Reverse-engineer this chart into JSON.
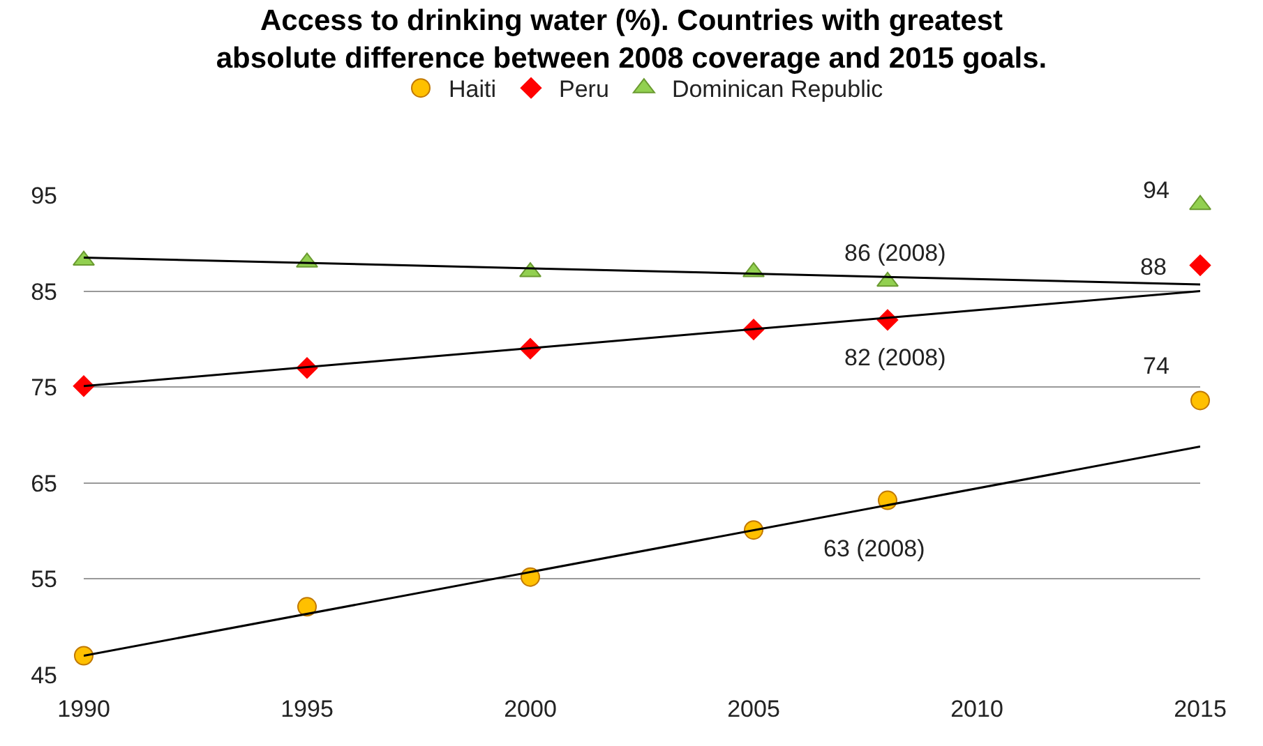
{
  "chart_data": {
    "type": "scatter",
    "title": "Access to drinking water (%). Countries with greatest\nabsolute difference between 2008 coverage and 2015 goals.",
    "xlim": [
      1990,
      2015
    ],
    "xticks": [
      1990,
      1995,
      2000,
      2005,
      2010,
      2015
    ],
    "ylim": [
      45,
      95
    ],
    "yticks": [
      45,
      55,
      65,
      75,
      85,
      95
    ],
    "grid": "y",
    "legend": "top",
    "series": [
      {
        "name": "Haiti",
        "color": "#ffc000",
        "marker": "circle",
        "x": [
          1990,
          1995,
          2000,
          2005,
          2008,
          2015
        ],
        "values": [
          47,
          52.1,
          55.2,
          60.1,
          63.2,
          73.6
        ]
      },
      {
        "name": "Peru",
        "color": "#ff0000",
        "marker": "diamond",
        "x": [
          1990,
          1995,
          2000,
          2005,
          2008,
          2015
        ],
        "values": [
          75.1,
          77,
          79,
          81,
          82,
          87.7
        ]
      },
      {
        "name": "Dominican Republic",
        "color": "#92d050",
        "marker": "triangle",
        "x": [
          1990,
          1995,
          2000,
          2005,
          2008,
          2015
        ],
        "values": [
          88.2,
          88,
          87,
          87,
          86,
          94
        ]
      },
      {
        "type": "line",
        "color": "#000000",
        "marker": "none",
        "x": [
          1990,
          2015
        ],
        "values": [
          47,
          68.8
        ]
      },
      {
        "type": "line",
        "color": "#000000",
        "marker": "none",
        "x": [
          1990,
          2015
        ],
        "values": [
          75.1,
          85
        ]
      },
      {
        "type": "line",
        "color": "#000000",
        "marker": "none",
        "x": [
          1990,
          2015
        ],
        "values": [
          88.5,
          85.7
        ]
      }
    ],
    "annotations": [
      "94",
      "88",
      "74",
      "86 (2008)",
      "82 (2008)",
      "63 (2008)"
    ]
  }
}
